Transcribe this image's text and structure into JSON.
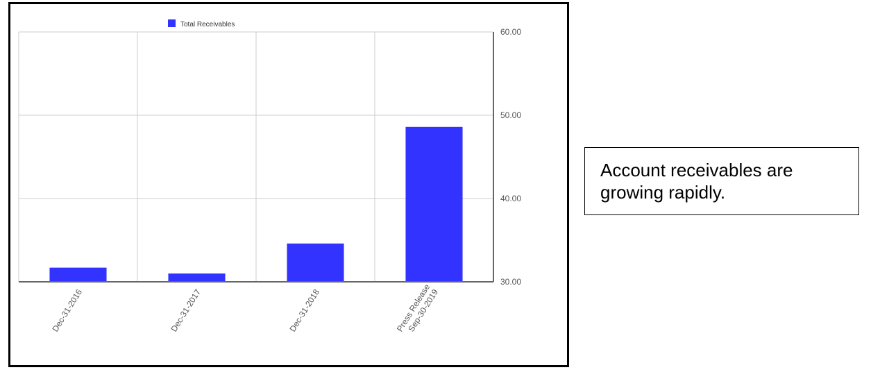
{
  "chart_data": {
    "type": "bar",
    "categories": [
      "Dec-31-2016",
      "Dec-31-2017",
      "Dec-31-2018",
      "Press Release\nSep-30-2019"
    ],
    "series": [
      {
        "name": "Total Receivables",
        "values": [
          31.7,
          31.0,
          34.6,
          48.6
        ]
      }
    ],
    "ylim": [
      30,
      60
    ],
    "yticks": [
      "30.00",
      "40.00",
      "50.00",
      "60.00"
    ],
    "y_axis_side": "right",
    "legend_position": "top",
    "grid": true,
    "colors": {
      "bar": "#3333ff",
      "grid": "#cccccc",
      "axis": "#666666",
      "text": "#555555"
    }
  },
  "note": {
    "text": "Account receivables are growing rapidly."
  }
}
